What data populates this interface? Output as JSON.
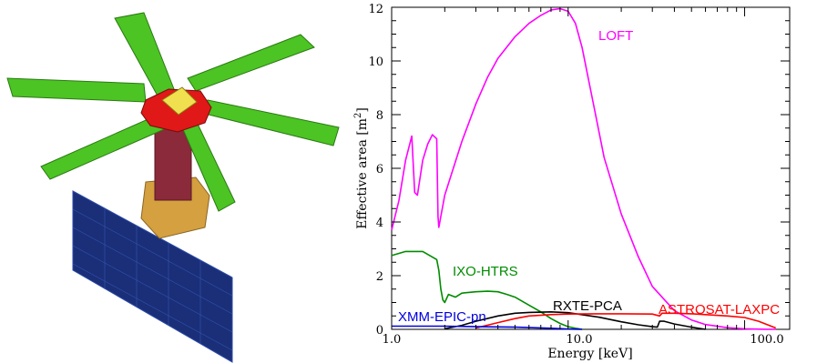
{
  "chart_data": {
    "type": "line",
    "xlabel": "Energy  [keV]",
    "ylabel": "Effective area  [m",
    "ylabel_sup": "2",
    "ylabel_close": "]",
    "x_scale": "log",
    "xlim": [
      1.0,
      180.0
    ],
    "ylim": [
      0,
      12
    ],
    "x_tick_labels": [
      "1.0",
      "10.0",
      "100.0"
    ],
    "y_tick_labels": [
      "0",
      "2",
      "4",
      "6",
      "8",
      "10",
      "12"
    ],
    "x_ticks": [
      1.0,
      10.0,
      100.0
    ],
    "y_ticks": [
      0,
      2,
      4,
      6,
      8,
      10,
      12
    ],
    "series": [
      {
        "name": "LOFT",
        "color": "#ff00ff",
        "x": [
          1.0,
          1.1,
          1.2,
          1.3,
          1.35,
          1.4,
          1.5,
          1.6,
          1.7,
          1.8,
          1.83,
          1.85,
          2.0,
          2.5,
          3.0,
          3.5,
          4.0,
          5.0,
          6.0,
          7.0,
          8.0,
          9.0,
          10.0,
          11.0,
          12.0,
          14.0,
          16.0,
          20.0,
          25.0,
          30.0,
          40.0,
          50.0,
          60.0,
          80.0,
          100.0,
          130.0,
          150.0
        ],
        "y": [
          3.7,
          4.8,
          6.3,
          7.2,
          5.1,
          5.0,
          6.3,
          6.9,
          7.25,
          7.1,
          4.2,
          3.8,
          5.0,
          7.0,
          8.4,
          9.4,
          10.1,
          10.9,
          11.4,
          11.7,
          11.9,
          11.95,
          11.85,
          11.4,
          10.5,
          8.3,
          6.4,
          4.3,
          2.7,
          1.6,
          0.7,
          0.35,
          0.18,
          0.06,
          0.02,
          0.005,
          0.0
        ]
      },
      {
        "name": "IXO-HTRS",
        "color": "#008c00",
        "x": [
          1.0,
          1.2,
          1.5,
          1.8,
          1.85,
          1.9,
          1.95,
          2.0,
          2.1,
          2.3,
          2.5,
          3.0,
          3.5,
          4.0,
          4.5,
          5.0,
          6.0,
          7.0,
          8.0,
          9.0,
          10.0,
          11.0,
          12.0
        ],
        "y": [
          2.75,
          2.9,
          2.9,
          2.6,
          2.2,
          1.5,
          1.1,
          1.0,
          1.3,
          1.2,
          1.35,
          1.4,
          1.42,
          1.4,
          1.3,
          1.2,
          0.9,
          0.65,
          0.4,
          0.22,
          0.1,
          0.04,
          0.0
        ]
      },
      {
        "name": "RXTE-PCA",
        "color": "#000000",
        "x": [
          2.0,
          2.5,
          3.0,
          4.0,
          5.0,
          6.0,
          8.0,
          10.0,
          15.0,
          20.0,
          25.0,
          30.0,
          32.0,
          33.0,
          35.0,
          40.0,
          50.0,
          60.0
        ],
        "y": [
          0.02,
          0.15,
          0.3,
          0.5,
          0.6,
          0.63,
          0.65,
          0.62,
          0.45,
          0.28,
          0.17,
          0.1,
          0.08,
          0.3,
          0.3,
          0.2,
          0.08,
          0.0
        ]
      },
      {
        "name": "ASTROSAT-LAXPC",
        "color": "#ff0000",
        "x": [
          3.0,
          4.0,
          5.0,
          6.0,
          8.0,
          10.0,
          15.0,
          20.0,
          30.0,
          33.0,
          34.0,
          40.0,
          50.0,
          60.0,
          80.0,
          100.0,
          120.0,
          150.0
        ],
        "y": [
          0.05,
          0.25,
          0.4,
          0.5,
          0.55,
          0.57,
          0.58,
          0.58,
          0.57,
          0.5,
          0.6,
          0.6,
          0.58,
          0.55,
          0.5,
          0.44,
          0.3,
          0.05
        ]
      },
      {
        "name": "XMM-EPIC-pn",
        "color": "#0000dd",
        "x": [
          1.0,
          2.0,
          3.0,
          5.0,
          8.0,
          10.0,
          12.0
        ],
        "y": [
          0.12,
          0.12,
          0.1,
          0.08,
          0.04,
          0.01,
          0.0
        ]
      }
    ]
  }
}
